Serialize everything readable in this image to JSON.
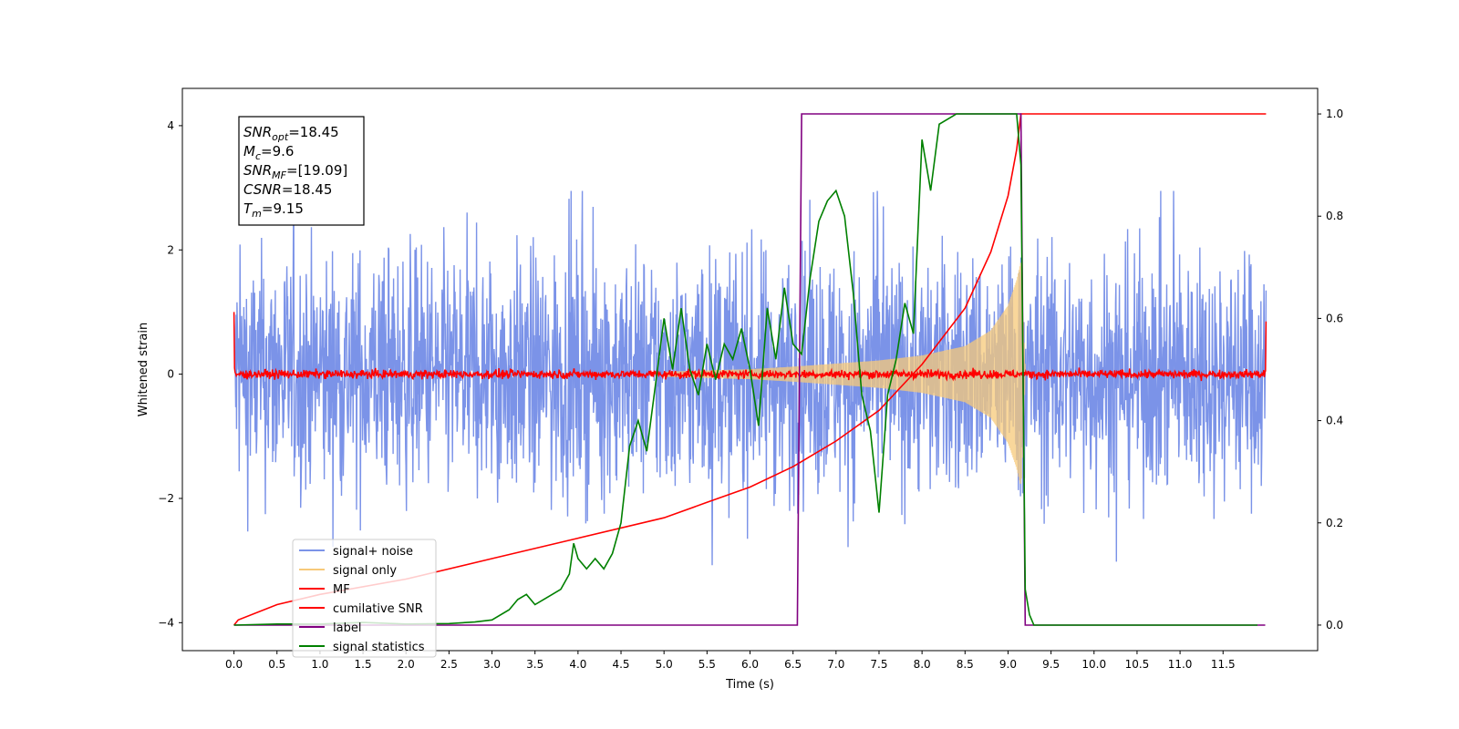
{
  "chart_data": {
    "type": "line",
    "xlabel": "Time (s)",
    "ylabel": "Whitened strain",
    "xlim": [
      -0.6,
      12.6
    ],
    "ylim": [
      -4.45,
      4.6
    ],
    "ylim_right": [
      -0.05,
      1.05
    ],
    "x_ticks": [
      "0.0",
      "0.5",
      "1.0",
      "1.5",
      "2.0",
      "2.5",
      "3.0",
      "3.5",
      "4.0",
      "4.5",
      "5.0",
      "5.5",
      "6.0",
      "6.5",
      "7.0",
      "7.5",
      "8.0",
      "8.5",
      "9.0",
      "9.5",
      "10.0",
      "10.5",
      "11.0",
      "11.5"
    ],
    "y_ticks_left": [
      "4",
      "2",
      "0",
      "−2",
      "−4"
    ],
    "y_ticks_right": [
      "1.0",
      "0.8",
      "0.6",
      "0.4",
      "0.2",
      "0.0"
    ],
    "legend_position": "lower-left",
    "annotation": [
      {
        "sym": "SNR",
        "sub": "opt",
        "text": "=18.45"
      },
      {
        "sym": "M",
        "sub": "c",
        "text": "=9.6"
      },
      {
        "sym": "SNR",
        "sub": "MF",
        "text": "=[19.09]"
      },
      {
        "sym": "CSNR",
        "sub": "",
        "text": "=18.45"
      },
      {
        "sym": "T",
        "sub": "m",
        "text": "=9.15"
      }
    ],
    "series": [
      {
        "name": "signal+ noise",
        "color": "#7b93e8",
        "axis": "left",
        "kind": "noise",
        "x_range": [
          0,
          12
        ],
        "amplitude": 1.3
      },
      {
        "name": "signal only",
        "color": "#f7c97a",
        "axis": "left",
        "kind": "chirp",
        "envelope": {
          "x": [
            5.0,
            6.0,
            6.5,
            7.0,
            7.5,
            8.0,
            8.5,
            8.8,
            9.0,
            9.1,
            9.15,
            9.2
          ],
          "y": [
            0.04,
            0.08,
            0.12,
            0.17,
            0.22,
            0.3,
            0.45,
            0.7,
            1.1,
            1.5,
            1.8,
            0.0
          ]
        }
      },
      {
        "name": "MF",
        "color": "#ff0000",
        "axis": "left",
        "kind": "noise",
        "x_range": [
          0,
          12
        ],
        "amplitude": 0.07,
        "edge_values": {
          "start": [
            1.0,
            0.1
          ],
          "end": [
            0.85,
            0.05
          ]
        }
      },
      {
        "name": "cumilative SNR",
        "color": "#ff0000",
        "axis": "right",
        "x": [
          0.0,
          0.05,
          0.5,
          1.0,
          2.0,
          3.0,
          4.0,
          5.0,
          5.5,
          6.0,
          6.5,
          7.0,
          7.5,
          8.0,
          8.5,
          8.8,
          9.0,
          9.1,
          9.15,
          12.0
        ],
        "y": [
          0.0,
          0.01,
          0.04,
          0.06,
          0.09,
          0.13,
          0.17,
          0.21,
          0.24,
          0.27,
          0.31,
          0.36,
          0.42,
          0.51,
          0.62,
          0.73,
          0.84,
          0.93,
          1.0,
          1.0
        ]
      },
      {
        "name": "label",
        "color": "#800080",
        "axis": "right",
        "x": [
          0.0,
          6.55,
          6.6,
          9.15,
          9.2,
          11.99
        ],
        "y": [
          0.0,
          0.0,
          1.0,
          1.0,
          0.0,
          0.0
        ]
      },
      {
        "name": "signal statistics",
        "color": "#008000",
        "axis": "right",
        "x": [
          0.0,
          0.5,
          1.0,
          1.5,
          2.0,
          2.5,
          2.8,
          3.0,
          3.2,
          3.3,
          3.4,
          3.5,
          3.6,
          3.7,
          3.8,
          3.9,
          3.95,
          4.0,
          4.1,
          4.2,
          4.3,
          4.4,
          4.5,
          4.6,
          4.7,
          4.8,
          4.9,
          5.0,
          5.1,
          5.2,
          5.3,
          5.4,
          5.5,
          5.6,
          5.7,
          5.8,
          5.9,
          6.0,
          6.1,
          6.2,
          6.3,
          6.4,
          6.5,
          6.6,
          6.7,
          6.8,
          6.9,
          7.0,
          7.1,
          7.2,
          7.3,
          7.4,
          7.5,
          7.6,
          7.7,
          7.8,
          7.9,
          8.0,
          8.1,
          8.2,
          8.3,
          8.4,
          8.5,
          8.6,
          8.8,
          9.0,
          9.1,
          9.15,
          9.2,
          9.25,
          9.3,
          10.0,
          11.0,
          11.9
        ],
        "y": [
          0.0,
          0.002,
          0.002,
          0.005,
          0.002,
          0.003,
          0.006,
          0.01,
          0.03,
          0.05,
          0.06,
          0.04,
          0.05,
          0.06,
          0.07,
          0.1,
          0.16,
          0.13,
          0.11,
          0.13,
          0.11,
          0.14,
          0.2,
          0.35,
          0.4,
          0.34,
          0.47,
          0.6,
          0.5,
          0.62,
          0.5,
          0.45,
          0.55,
          0.48,
          0.55,
          0.52,
          0.58,
          0.5,
          0.39,
          0.62,
          0.52,
          0.66,
          0.55,
          0.53,
          0.68,
          0.79,
          0.83,
          0.85,
          0.8,
          0.65,
          0.45,
          0.38,
          0.22,
          0.45,
          0.52,
          0.63,
          0.57,
          0.95,
          0.85,
          0.98,
          0.99,
          1.0,
          1.0,
          1.0,
          1.0,
          1.0,
          1.0,
          0.9,
          0.07,
          0.02,
          0.0,
          0.0,
          0.0,
          0.0
        ]
      }
    ]
  }
}
